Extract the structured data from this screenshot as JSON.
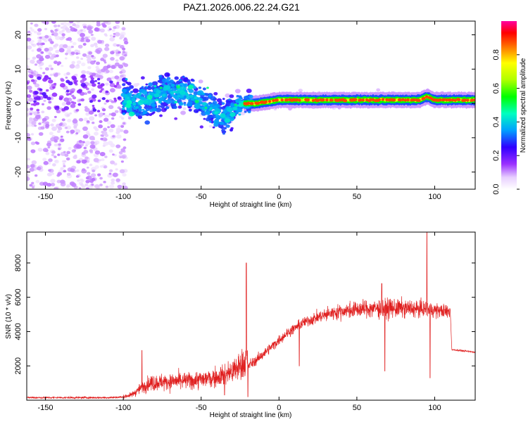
{
  "title": "PAZ1.2026.006.22.24.G21",
  "colors": {
    "snr_line": "#e02020",
    "axis": "#000000",
    "background": "#ffffff"
  },
  "chart_data": [
    {
      "type": "heatmap",
      "name": "spectrogram",
      "xlabel": "Height of straight line (km)",
      "ylabel": "Frequency (Hz)",
      "xlim": [
        -162,
        126
      ],
      "ylim": [
        -25,
        24
      ],
      "xticks": [
        -150,
        -100,
        -50,
        0,
        50,
        100
      ],
      "yticks": [
        -20,
        -10,
        0,
        10,
        20
      ],
      "colorbar": {
        "label": "Normalized spectral amplitude",
        "range": [
          0.0,
          1.0
        ],
        "ticks": [
          0.0,
          0.2,
          0.4,
          0.6,
          0.8
        ],
        "tick_labels": [
          "0.0",
          "0.2",
          "0.4",
          "0.6",
          "0.8"
        ],
        "stops": [
          {
            "v": 0.0,
            "c": "#ffffff"
          },
          {
            "v": 0.07,
            "c": "#e8d0ff"
          },
          {
            "v": 0.15,
            "c": "#9a30ff"
          },
          {
            "v": 0.25,
            "c": "#3000ff"
          },
          {
            "v": 0.35,
            "c": "#00a0ff"
          },
          {
            "v": 0.45,
            "c": "#00ffc0"
          },
          {
            "v": 0.55,
            "c": "#00ff00"
          },
          {
            "v": 0.65,
            "c": "#b0ff00"
          },
          {
            "v": 0.75,
            "c": "#ffff00"
          },
          {
            "v": 0.85,
            "c": "#ff7000"
          },
          {
            "v": 0.93,
            "c": "#ff0000"
          },
          {
            "v": 1.0,
            "c": "#ff00a0"
          }
        ]
      },
      "ridge": [
        [
          -160,
          3
        ],
        [
          -120,
          3
        ],
        [
          -100,
          1
        ],
        [
          -90,
          0
        ],
        [
          -80,
          2
        ],
        [
          -70,
          4
        ],
        [
          -60,
          3
        ],
        [
          -50,
          1
        ],
        [
          -40,
          -3
        ],
        [
          -35,
          -4
        ],
        [
          -30,
          -2
        ],
        [
          -25,
          0
        ],
        [
          -15,
          0
        ],
        [
          0,
          1
        ],
        [
          10,
          1
        ],
        [
          50,
          1
        ],
        [
          90,
          1
        ],
        [
          95,
          2
        ],
        [
          100,
          1
        ],
        [
          126,
          1
        ]
      ]
    },
    {
      "type": "line",
      "name": "snr",
      "xlabel": "Height of straight line (km)",
      "ylabel": "SNR (10 * v/v)",
      "xlim": [
        -162,
        126
      ],
      "ylim": [
        0,
        9800
      ],
      "xticks": [
        -150,
        -100,
        -50,
        0,
        50,
        100
      ],
      "yticks": [
        2000,
        4000,
        6000,
        8000
      ],
      "envelope": [
        [
          -162,
          150
        ],
        [
          -110,
          150
        ],
        [
          -100,
          180
        ],
        [
          -95,
          250
        ],
        [
          -85,
          800
        ],
        [
          -75,
          900
        ],
        [
          -50,
          1000
        ],
        [
          -40,
          1150
        ],
        [
          -30,
          1400
        ],
        [
          -22,
          1900
        ],
        [
          -15,
          2300
        ],
        [
          -5,
          3100
        ],
        [
          5,
          3900
        ],
        [
          15,
          4500
        ],
        [
          25,
          4850
        ],
        [
          35,
          5100
        ],
        [
          45,
          5250
        ],
        [
          60,
          5350
        ],
        [
          80,
          5350
        ],
        [
          95,
          5300
        ],
        [
          100,
          5250
        ],
        [
          110,
          5150
        ],
        [
          111,
          2950
        ],
        [
          126,
          2800
        ]
      ],
      "spikes": [
        [
          -88,
          2900
        ],
        [
          -21,
          8000
        ],
        [
          66,
          6800
        ],
        [
          95,
          9800
        ],
        [
          97,
          1300
        ],
        [
          68,
          1700
        ],
        [
          -35,
          300
        ],
        [
          -20,
          200
        ],
        [
          13,
          2000
        ]
      ]
    }
  ]
}
